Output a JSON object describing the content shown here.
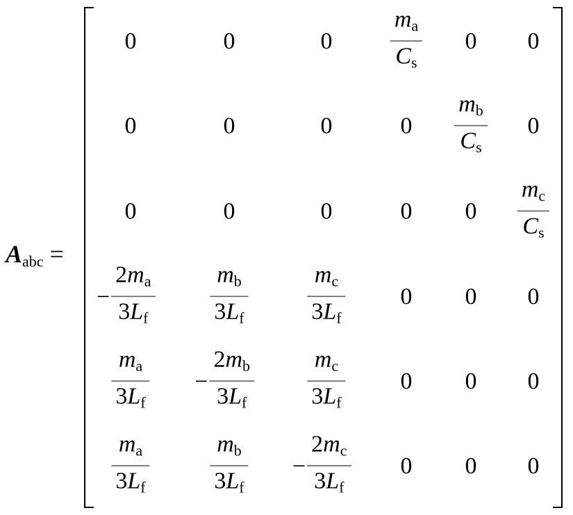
{
  "lhs": {
    "symbol": "A",
    "subscript": "abc",
    "equals": "="
  },
  "matrix": [
    [
      {
        "v": "0"
      },
      {
        "v": "0"
      },
      {
        "v": "0"
      },
      {
        "frac": true,
        "neg": "",
        "nc": "",
        "nv": "m",
        "ns": "a",
        "dc": "",
        "dv": "C",
        "ds": "s"
      },
      {
        "v": "0"
      },
      {
        "v": "0"
      }
    ],
    [
      {
        "v": "0"
      },
      {
        "v": "0"
      },
      {
        "v": "0"
      },
      {
        "v": "0"
      },
      {
        "frac": true,
        "neg": "",
        "nc": "",
        "nv": "m",
        "ns": "b",
        "dc": "",
        "dv": "C",
        "ds": "s"
      },
      {
        "v": "0"
      }
    ],
    [
      {
        "v": "0"
      },
      {
        "v": "0"
      },
      {
        "v": "0"
      },
      {
        "v": "0"
      },
      {
        "v": "0"
      },
      {
        "frac": true,
        "neg": "",
        "nc": "",
        "nv": "m",
        "ns": "c",
        "dc": "",
        "dv": "C",
        "ds": "s"
      }
    ],
    [
      {
        "frac": true,
        "neg": "−",
        "nc": "2",
        "nv": "m",
        "ns": "a",
        "dc": "3",
        "dv": "L",
        "ds": "f"
      },
      {
        "frac": true,
        "neg": "",
        "nc": "",
        "nv": "m",
        "ns": "b",
        "dc": "3",
        "dv": "L",
        "ds": "f"
      },
      {
        "frac": true,
        "neg": "",
        "nc": "",
        "nv": "m",
        "ns": "c",
        "dc": "3",
        "dv": "L",
        "ds": "f"
      },
      {
        "v": "0"
      },
      {
        "v": "0"
      },
      {
        "v": "0"
      }
    ],
    [
      {
        "frac": true,
        "neg": "",
        "nc": "",
        "nv": "m",
        "ns": "a",
        "dc": "3",
        "dv": "L",
        "ds": "f"
      },
      {
        "frac": true,
        "neg": "−",
        "nc": "2",
        "nv": "m",
        "ns": "b",
        "dc": "3",
        "dv": "L",
        "ds": "f"
      },
      {
        "frac": true,
        "neg": "",
        "nc": "",
        "nv": "m",
        "ns": "c",
        "dc": "3",
        "dv": "L",
        "ds": "f"
      },
      {
        "v": "0"
      },
      {
        "v": "0"
      },
      {
        "v": "0"
      }
    ],
    [
      {
        "frac": true,
        "neg": "",
        "nc": "",
        "nv": "m",
        "ns": "a",
        "dc": "3",
        "dv": "L",
        "ds": "f"
      },
      {
        "frac": true,
        "neg": "",
        "nc": "",
        "nv": "m",
        "ns": "b",
        "dc": "3",
        "dv": "L",
        "ds": "f"
      },
      {
        "frac": true,
        "neg": "−",
        "nc": "2",
        "nv": "m",
        "ns": "c",
        "dc": "3",
        "dv": "L",
        "ds": "f"
      },
      {
        "v": "0"
      },
      {
        "v": "0"
      },
      {
        "v": "0"
      }
    ]
  ]
}
